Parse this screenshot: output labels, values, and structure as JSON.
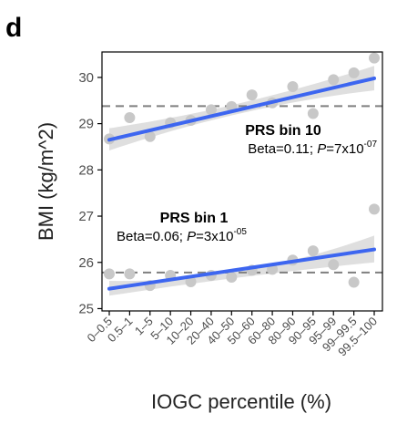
{
  "panel_label": "d",
  "chart_data": {
    "type": "scatter",
    "xlabel": "IOGC percentile (%)",
    "ylabel": "BMI (kg/m^2)",
    "ylim": [
      24.95,
      30.55
    ],
    "yticks": [
      25,
      26,
      27,
      28,
      29,
      30
    ],
    "categories": [
      "0–0.5",
      "0.5–1",
      "1–5",
      "5–10",
      "10–20",
      "20–40",
      "40–50",
      "50–60",
      "60–80",
      "80–90",
      "90–95",
      "95–99",
      "99–99.5",
      "99.5–100"
    ],
    "series": [
      {
        "values": [
          28.67,
          29.13,
          28.72,
          29.02,
          29.07,
          29.3,
          29.37,
          29.62,
          29.45,
          29.8,
          29.22,
          29.95,
          30.1,
          30.42
        ],
        "fit": {
          "start": 28.65,
          "end": 29.98,
          "ci_lower_start": 28.42,
          "ci_upper_start": 28.9,
          "ci_lower_mid": 29.23,
          "ci_upper_mid": 29.45,
          "ci_lower_end": 29.72,
          "ci_upper_end": 30.25
        },
        "reference_line": 29.38,
        "annotation": {
          "title": "PRS bin 10",
          "beta_text": "Beta=0.11; ",
          "p_label": "P",
          "p_text": "=7x10",
          "p_exp": "-07"
        }
      },
      {
        "values": [
          25.75,
          25.75,
          25.5,
          25.72,
          25.58,
          25.72,
          25.68,
          25.83,
          25.85,
          26.05,
          26.25,
          25.95,
          25.57,
          27.15
        ],
        "fit": {
          "start": 25.43,
          "end": 26.28,
          "ci_lower_start": 25.28,
          "ci_upper_start": 25.6,
          "ci_lower_mid": 25.68,
          "ci_upper_mid": 25.82,
          "ci_lower_end": 26.0,
          "ci_upper_end": 26.58
        },
        "reference_line": 25.78,
        "annotation": {
          "title": "PRS bin 1",
          "beta_text": "Beta=0.06; ",
          "p_label": "P",
          "p_text": "=3x10",
          "p_exp": "-05"
        }
      }
    ],
    "colors": {
      "points": "#c8c8c8",
      "fit_line": "#3d66f0",
      "ci_band": "#d9d9d9",
      "reference_line": "#7f7f7f",
      "axis": "#000000"
    },
    "grid": false,
    "legend": "none"
  }
}
